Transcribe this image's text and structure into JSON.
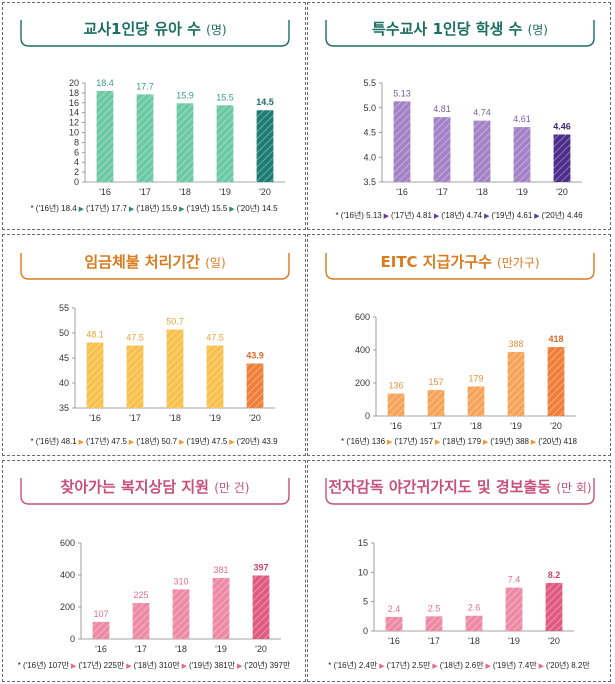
{
  "chart_data": [
    {
      "type": "bar",
      "title": "교사1인당 유아 수",
      "unit": "(명)",
      "categories": [
        "'16",
        "'17",
        "'18",
        "'19",
        "'20"
      ],
      "values": [
        18.4,
        17.7,
        15.9,
        15.5,
        14.5
      ],
      "value_labels": [
        "18.4",
        "17.7",
        "15.9",
        "15.5",
        "14.5"
      ],
      "yticks": [
        "0",
        "2",
        "4",
        "6",
        "8",
        "10",
        "12",
        "14",
        "16",
        "18",
        "20"
      ],
      "ylim": [
        0,
        20
      ],
      "footnote": [
        "* ('16년) 18.4",
        "('17년) 17.7",
        "('18년) 15.9",
        "('19년) 15.5",
        "('20년) 14.5"
      ],
      "colors": {
        "title": "#1a6e62",
        "bar": "#6cc9a4",
        "bar_last": "#1d7d74",
        "label": "#3a9c8a",
        "label_last": "#1d6e66",
        "arrow": "#2a8c7f"
      }
    },
    {
      "type": "bar",
      "title": "특수교사 1인당 학생 수",
      "unit": "(명)",
      "categories": [
        "'16",
        "'17",
        "'18",
        "'19",
        "'20"
      ],
      "values": [
        5.13,
        4.81,
        4.74,
        4.61,
        4.46
      ],
      "value_labels": [
        "5.13",
        "4.81",
        "4.74",
        "4.61",
        "4.46"
      ],
      "yticks": [
        "3.5",
        "4.0",
        "4.5",
        "5.0",
        "5.5"
      ],
      "ylim": [
        3.5,
        5.5
      ],
      "footnote": [
        "* ('16년) 5.13",
        "('17년) 4.81",
        "('18년) 4.74",
        "('19년) 4.61",
        "('20년) 4.46"
      ],
      "colors": {
        "title": "#1a6e62",
        "bar": "#a482c6",
        "bar_last": "#4c2d8a",
        "label": "#7a5ca6",
        "label_last": "#3c2378",
        "arrow": "#5b3c96"
      }
    },
    {
      "type": "bar",
      "title": "임금체불 처리기간",
      "unit": "(일)",
      "categories": [
        "'16",
        "'17",
        "'18",
        "'19",
        "'20"
      ],
      "values": [
        48.1,
        47.5,
        50.7,
        47.5,
        43.9
      ],
      "value_labels": [
        "48.1",
        "47.5",
        "50.7",
        "47.5",
        "43.9"
      ],
      "yticks": [
        "35",
        "40",
        "45",
        "50",
        "55"
      ],
      "ylim": [
        35,
        55
      ],
      "footnote": [
        "* ('16년) 48.1",
        "('17년) 47.5",
        "('18년) 50.7",
        "('19년) 47.5",
        "('20년) 43.9"
      ],
      "colors": {
        "title": "#d97b1e",
        "bar": "#f8c04d",
        "bar_last": "#f07f3a",
        "label": "#e8a43a",
        "label_last": "#e0692c",
        "arrow": "#f09a30"
      }
    },
    {
      "type": "bar",
      "title": "EITC 지급가구수",
      "unit": "(만가구)",
      "categories": [
        "'16",
        "'17",
        "'18",
        "'19",
        "'20"
      ],
      "values": [
        136,
        157,
        179,
        388,
        418
      ],
      "value_labels": [
        "136",
        "157",
        "179",
        "388",
        "418"
      ],
      "yticks": [
        "0",
        "200",
        "400",
        "600"
      ],
      "ylim": [
        0,
        600
      ],
      "footnote": [
        "* ('16년) 136",
        "('17년) 157",
        "('18년) 179",
        "('19년) 388",
        "('20년) 418"
      ],
      "colors": {
        "title": "#d97b1e",
        "bar": "#f5a45a",
        "bar_last": "#f07f3a",
        "label": "#e8913a",
        "label_last": "#e0692c",
        "arrow": "#f09a30"
      }
    },
    {
      "type": "bar",
      "title": "찾아가는 복지상담 지원",
      "unit": "(만 건)",
      "categories": [
        "'16",
        "'17",
        "'18",
        "'19",
        "'20"
      ],
      "values": [
        107,
        225,
        310,
        381,
        397
      ],
      "value_labels": [
        "107",
        "225",
        "310",
        "381",
        "397"
      ],
      "yticks": [
        "0",
        "200",
        "400",
        "600"
      ],
      "ylim": [
        0,
        600
      ],
      "footnote": [
        "* ('16년) 107만",
        "('17년) 225만",
        "('18년) 310만",
        "('19년) 381만",
        "('20년) 397만"
      ],
      "colors": {
        "title": "#c7507a",
        "bar": "#ee8aa6",
        "bar_last": "#e05a82",
        "label": "#e0708f",
        "label_last": "#c8466e",
        "arrow": "#e46a8c"
      }
    },
    {
      "type": "bar",
      "title": "전자감독 야간귀가지도 및 경보출동",
      "unit": "(만 회)",
      "categories": [
        "'16",
        "'17",
        "'18",
        "'19",
        "'20"
      ],
      "values": [
        2.4,
        2.5,
        2.6,
        7.4,
        8.2
      ],
      "value_labels": [
        "2.4",
        "2.5",
        "2.6",
        "7.4",
        "8.2"
      ],
      "yticks": [
        "0",
        "5",
        "10",
        "15"
      ],
      "ylim": [
        0,
        15
      ],
      "footnote": [
        "* ('16년) 2.4만",
        "('17년) 2.5만",
        "('18년) 2.6만",
        "('19년) 7.4만",
        "('20년) 8.2만"
      ],
      "colors": {
        "title": "#c7507a",
        "bar": "#ee8aa6",
        "bar_last": "#e05a82",
        "label": "#e0708f",
        "label_last": "#c8466e",
        "arrow": "#e46a8c"
      }
    }
  ]
}
